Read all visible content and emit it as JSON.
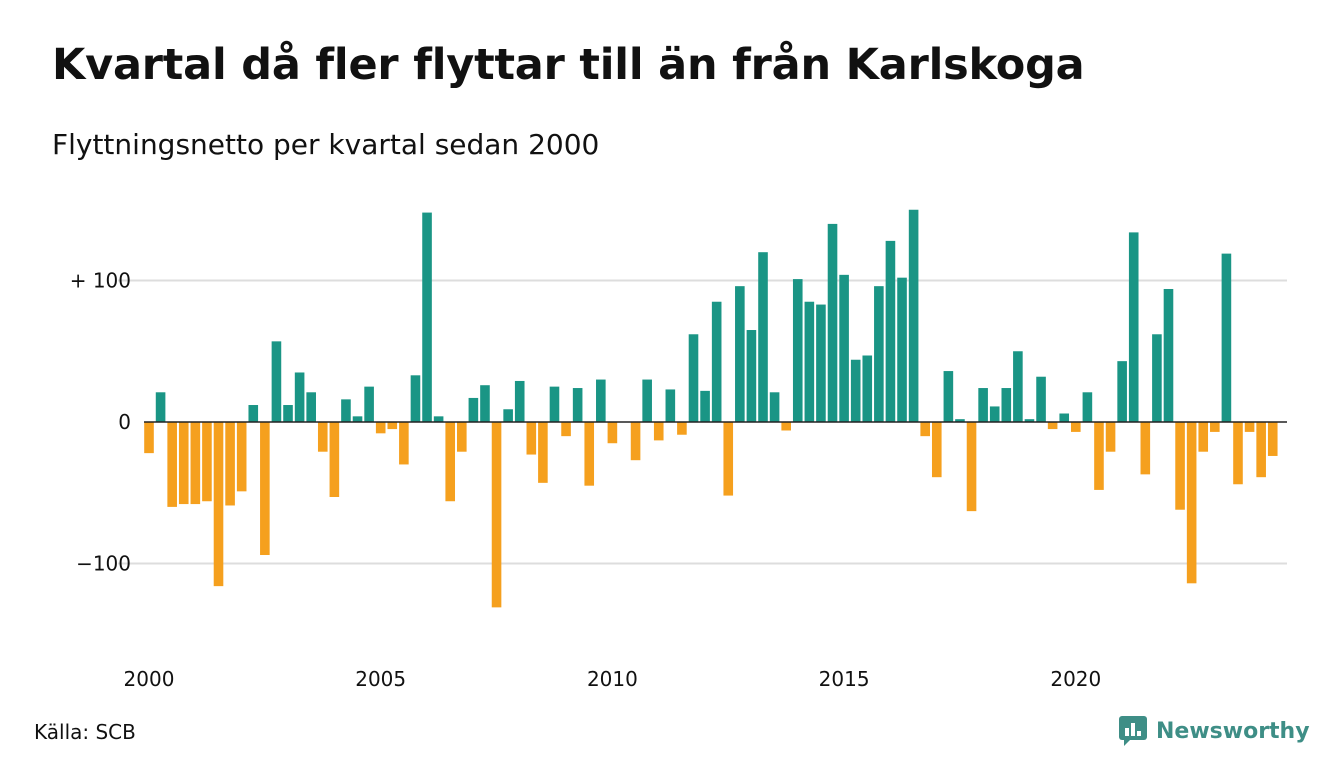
{
  "title": "Kvartal då fler flyttar till än från Karlskoga",
  "subtitle": "Flyttningsnetto per kvartal sedan 2000",
  "source": "Källa: SCB",
  "brand": {
    "name": "Newsworthy",
    "icon": "newsworthy-logo-icon",
    "color": "#3e8e86"
  },
  "colors": {
    "positive": "#1a9585",
    "negative": "#f5a01e",
    "grid": "#dddddd",
    "zero_line": "#222222"
  },
  "chart_data": {
    "type": "bar",
    "x_start": "2000 Q1",
    "x_tick_labels": [
      "2000",
      "2005",
      "2010",
      "2015",
      "2020"
    ],
    "y_tick_labels": [
      "+ 100",
      "0",
      "−100"
    ],
    "y_ticks": [
      100,
      0,
      -100
    ],
    "ylim": [
      -150,
      150
    ],
    "grid": true,
    "values": [
      -22,
      21,
      -60,
      -58,
      -58,
      -56,
      -116,
      -59,
      -49,
      12,
      -94,
      57,
      12,
      35,
      21,
      -21,
      -53,
      16,
      4,
      25,
      -8,
      -5,
      -30,
      33,
      148,
      4,
      -56,
      -21,
      17,
      26,
      -131,
      9,
      29,
      -23,
      -43,
      25,
      -10,
      24,
      -45,
      30,
      -15,
      0,
      -27,
      30,
      -13,
      23,
      -9,
      62,
      22,
      85,
      -52,
      96,
      65,
      120,
      21,
      -6,
      101,
      85,
      83,
      140,
      104,
      44,
      47,
      96,
      128,
      102,
      150,
      -10,
      -39,
      36,
      2,
      -63,
      24,
      11,
      24,
      50,
      2,
      32,
      -5,
      6,
      -7,
      21,
      -48,
      -21,
      43,
      134,
      -37,
      62,
      94,
      -62,
      -114,
      -21,
      -7,
      119,
      -44,
      -7,
      -39,
      -24
    ]
  }
}
